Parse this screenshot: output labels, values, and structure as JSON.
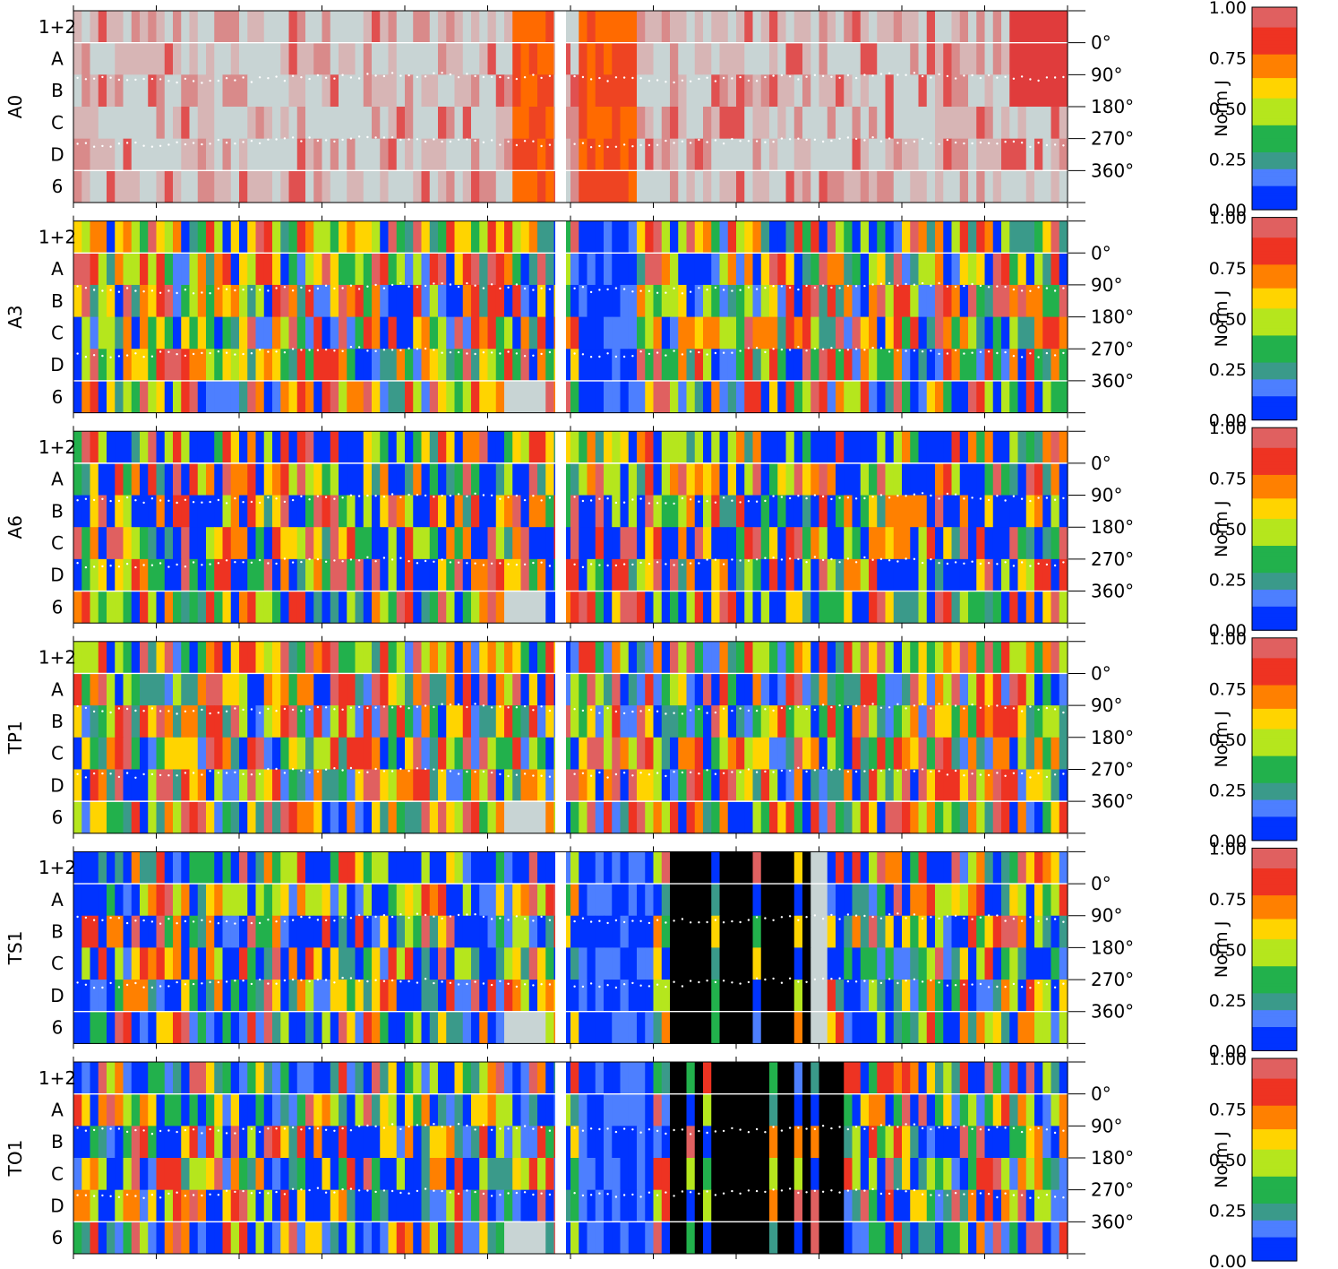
{
  "chart_data": {
    "type": "heatmap",
    "panels": [
      {
        "name": "A0",
        "style": "red"
      },
      {
        "name": "A3",
        "style": "mixed"
      },
      {
        "name": "A6",
        "style": "blue"
      },
      {
        "name": "TP1",
        "style": "mixed"
      },
      {
        "name": "TS1",
        "style": "black"
      },
      {
        "name": "TO1",
        "style": "black2"
      }
    ],
    "row_labels": [
      "1+2",
      "A",
      "B",
      "C",
      "D",
      "6"
    ],
    "angle_ticks": [
      "0°",
      "90°",
      "180°",
      "270°",
      "360°"
    ],
    "colorbar": {
      "label": "Norm J",
      "ticks": [
        "0.00",
        "0.25",
        "0.50",
        "0.75",
        "1.00"
      ],
      "range": [
        0,
        1
      ]
    },
    "colors": {
      "scale": [
        "#0033ff",
        "#4d7fff",
        "#3a9a8a",
        "#22b14c",
        "#b5e61d",
        "#ffd400",
        "#ff8000",
        "#ee3322",
        "#d7b5b5",
        "#c8d4d4"
      ],
      "missing": "#c8d4d4",
      "no_data": "#000000",
      "gap": "#ffffff",
      "trace": "#ffffff"
    },
    "n_columns": 120
  }
}
